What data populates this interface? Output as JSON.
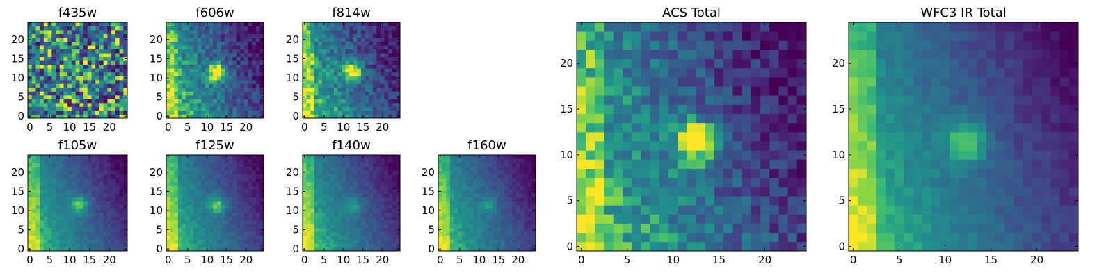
{
  "chart_data": [
    {
      "type": "heatmap",
      "title": "f435w",
      "grid_size": 25,
      "colormap": "viridis",
      "xticks": [
        0,
        5,
        10,
        15,
        20
      ],
      "yticks": [
        0,
        5,
        10,
        15,
        20
      ],
      "xlim": [
        -0.5,
        24.5
      ],
      "ylim": [
        -0.5,
        24.5
      ],
      "background": "noise",
      "source_peak": "none"
    },
    {
      "type": "heatmap",
      "title": "f606w",
      "grid_size": 25,
      "colormap": "viridis",
      "xticks": [
        0,
        5,
        10,
        15,
        20
      ],
      "yticks": [
        0,
        5,
        10,
        15,
        20
      ],
      "xlim": [
        -0.5,
        24.5
      ],
      "ylim": [
        -0.5,
        24.5
      ],
      "background": "noisy-gradient",
      "source_peak": "bright",
      "source_center": [
        12.5,
        11.5
      ]
    },
    {
      "type": "heatmap",
      "title": "f814w",
      "grid_size": 25,
      "colormap": "viridis",
      "xticks": [
        0,
        5,
        10,
        15,
        20
      ],
      "yticks": [
        0,
        5,
        10,
        15,
        20
      ],
      "xlim": [
        -0.5,
        24.5
      ],
      "ylim": [
        -0.5,
        24.5
      ],
      "background": "noisy-gradient",
      "source_peak": "bright",
      "source_center": [
        12.5,
        11.5
      ]
    },
    {
      "type": "heatmap",
      "title": "f105w",
      "grid_size": 25,
      "colormap": "viridis",
      "xticks": [
        0,
        5,
        10,
        15,
        20
      ],
      "yticks": [
        0,
        5,
        10,
        15,
        20
      ],
      "xlim": [
        -0.5,
        24.5
      ],
      "ylim": [
        -0.5,
        24.5
      ],
      "background": "gradient",
      "source_peak": "moderate",
      "source_center": [
        12.5,
        11.5
      ]
    },
    {
      "type": "heatmap",
      "title": "f125w",
      "grid_size": 25,
      "colormap": "viridis",
      "xticks": [
        0,
        5,
        10,
        15,
        20
      ],
      "yticks": [
        0,
        5,
        10,
        15,
        20
      ],
      "xlim": [
        -0.5,
        24.5
      ],
      "ylim": [
        -0.5,
        24.5
      ],
      "background": "gradient",
      "source_peak": "moderate",
      "source_center": [
        12.5,
        11.5
      ]
    },
    {
      "type": "heatmap",
      "title": "f140w",
      "grid_size": 25,
      "colormap": "viridis",
      "xticks": [
        0,
        5,
        10,
        15,
        20
      ],
      "yticks": [
        0,
        5,
        10,
        15,
        20
      ],
      "xlim": [
        -0.5,
        24.5
      ],
      "ylim": [
        -0.5,
        24.5
      ],
      "background": "gradient",
      "source_peak": "faint",
      "source_center": [
        12.5,
        11.5
      ]
    },
    {
      "type": "heatmap",
      "title": "f160w",
      "grid_size": 25,
      "colormap": "viridis",
      "xticks": [
        0,
        5,
        10,
        15,
        20
      ],
      "yticks": [
        0,
        5,
        10,
        15,
        20
      ],
      "xlim": [
        -0.5,
        24.5
      ],
      "ylim": [
        -0.5,
        24.5
      ],
      "background": "gradient",
      "source_peak": "faint",
      "source_center": [
        12.5,
        11.5
      ]
    },
    {
      "type": "heatmap",
      "title": "ACS Total",
      "grid_size": 25,
      "colormap": "viridis",
      "xticks": [
        0,
        5,
        10,
        15,
        20
      ],
      "yticks": [
        0,
        5,
        10,
        15,
        20
      ],
      "xlim": [
        -0.5,
        24.5
      ],
      "ylim": [
        -0.5,
        24.5
      ],
      "background": "noisy-gradient",
      "source_peak": "bright",
      "source_center": [
        12.5,
        11.5
      ]
    },
    {
      "type": "heatmap",
      "title": "WFC3 IR Total",
      "grid_size": 25,
      "colormap": "viridis",
      "xticks": [
        0,
        5,
        10,
        15,
        20
      ],
      "yticks": [
        0,
        5,
        10,
        15,
        20
      ],
      "xlim": [
        -0.5,
        24.5
      ],
      "ylim": [
        -0.5,
        24.5
      ],
      "background": "gradient",
      "source_peak": "moderate",
      "source_center": [
        12.5,
        11.5
      ]
    }
  ]
}
